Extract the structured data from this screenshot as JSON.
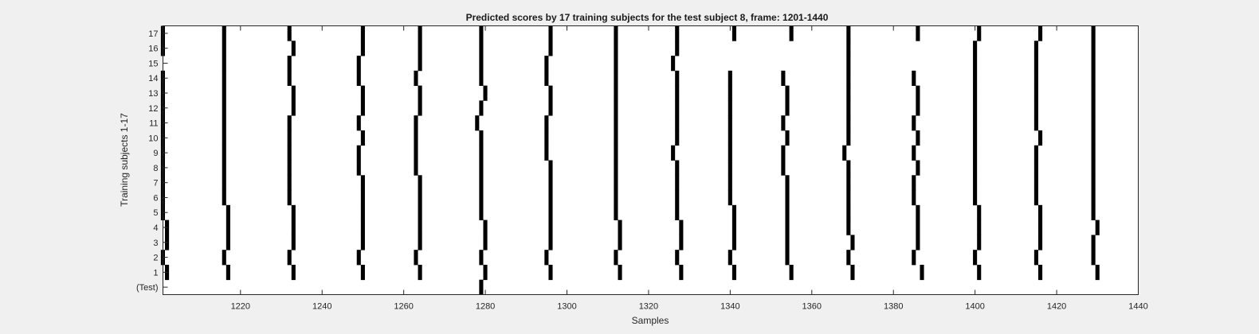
{
  "chart_data": {
    "type": "heatmap",
    "title": "Predicted scores by 17 training subjects for the test subject 8, frame: 1201-1440",
    "xlabel": "Samples",
    "ylabel": "Training subjects 1-17",
    "xlim": [
      1201,
      1440
    ],
    "xticks": [
      "1220",
      "1240",
      "1260",
      "1280",
      "1300",
      "1320",
      "1340",
      "1360",
      "1380",
      "1400",
      "1420",
      "1440"
    ],
    "yticks": [
      "(Test)",
      "1",
      "2",
      "3",
      "4",
      "5",
      "6",
      "7",
      "8",
      "9",
      "10",
      "11",
      "12",
      "13",
      "14",
      "15",
      "16",
      "17"
    ],
    "grid": false,
    "colors": {
      "mark": "#000000",
      "background": "#ffffff",
      "figure": "#f0f0f0"
    },
    "rows": [
      {
        "row": "(Test)",
        "samples": [
          1279
        ]
      },
      {
        "row": "1",
        "samples": [
          1202,
          1217,
          1233,
          1250,
          1264,
          1280,
          1296,
          1313,
          1328,
          1341,
          1355,
          1370,
          1387,
          1401,
          1416,
          1430
        ]
      },
      {
        "row": "2",
        "samples": [
          1201,
          1216,
          1232,
          1249,
          1263,
          1279,
          1295,
          1312,
          1327,
          1340,
          1354,
          1369,
          1385,
          1400,
          1415,
          1429
        ]
      },
      {
        "row": "3",
        "samples": [
          1202,
          1217,
          1233,
          1250,
          1264,
          1280,
          1296,
          1313,
          1328,
          1341,
          1354,
          1370,
          1386,
          1401,
          1416,
          1429
        ]
      },
      {
        "row": "4",
        "samples": [
          1202,
          1217,
          1233,
          1250,
          1264,
          1280,
          1296,
          1313,
          1328,
          1341,
          1354,
          1369,
          1386,
          1401,
          1416,
          1430
        ]
      },
      {
        "row": "5",
        "samples": [
          1201,
          1217,
          1233,
          1250,
          1264,
          1279,
          1296,
          1312,
          1327,
          1341,
          1354,
          1369,
          1386,
          1401,
          1416,
          1429
        ]
      },
      {
        "row": "6",
        "samples": [
          1201,
          1216,
          1232,
          1250,
          1264,
          1279,
          1296,
          1312,
          1327,
          1340,
          1354,
          1369,
          1385,
          1400,
          1415,
          1429
        ]
      },
      {
        "row": "7",
        "samples": [
          1201,
          1216,
          1232,
          1250,
          1264,
          1279,
          1296,
          1312,
          1327,
          1340,
          1354,
          1369,
          1385,
          1400,
          1415,
          1429
        ]
      },
      {
        "row": "8",
        "samples": [
          1201,
          1216,
          1232,
          1249,
          1263,
          1279,
          1296,
          1312,
          1327,
          1340,
          1353,
          1369,
          1386,
          1400,
          1415,
          1429
        ]
      },
      {
        "row": "9",
        "samples": [
          1201,
          1216,
          1232,
          1249,
          1263,
          1279,
          1295,
          1312,
          1326,
          1340,
          1353,
          1368,
          1385,
          1400,
          1415,
          1429
        ]
      },
      {
        "row": "10",
        "samples": [
          1201,
          1216,
          1232,
          1250,
          1263,
          1279,
          1295,
          1312,
          1327,
          1340,
          1354,
          1369,
          1386,
          1400,
          1416,
          1429
        ]
      },
      {
        "row": "11",
        "samples": [
          1201,
          1216,
          1232,
          1249,
          1263,
          1278,
          1295,
          1312,
          1327,
          1340,
          1353,
          1369,
          1385,
          1400,
          1415,
          1429
        ]
      },
      {
        "row": "12",
        "samples": [
          1201,
          1216,
          1233,
          1250,
          1264,
          1279,
          1296,
          1312,
          1327,
          1340,
          1354,
          1369,
          1386,
          1400,
          1415,
          1429
        ]
      },
      {
        "row": "13",
        "samples": [
          1201,
          1216,
          1233,
          1250,
          1264,
          1280,
          1296,
          1312,
          1327,
          1340,
          1354,
          1369,
          1386,
          1400,
          1415,
          1429
        ]
      },
      {
        "row": "14",
        "samples": [
          1201,
          1216,
          1232,
          1249,
          1263,
          1279,
          1295,
          1312,
          1327,
          1340,
          1353,
          1369,
          1385,
          1400,
          1415,
          1429
        ]
      },
      {
        "row": "15",
        "samples": [
          1216,
          1232,
          1249,
          1264,
          1279,
          1295,
          1312,
          1326,
          1369,
          1400,
          1415,
          1429
        ]
      },
      {
        "row": "16",
        "samples": [
          1201,
          1216,
          1233,
          1250,
          1264,
          1279,
          1296,
          1312,
          1327,
          1369,
          1400,
          1415,
          1429
        ]
      },
      {
        "row": "17",
        "samples": [
          1201,
          1216,
          1232,
          1250,
          1264,
          1279,
          1296,
          1312,
          1327,
          1341,
          1355,
          1369,
          1386,
          1401,
          1416,
          1429
        ]
      }
    ]
  }
}
